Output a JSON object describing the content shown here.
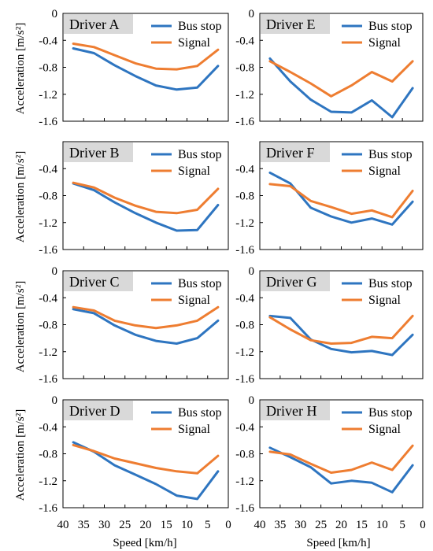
{
  "figure": {
    "ylabel": "Acceleration [m/s²]",
    "xlabel": "Speed [km/h]",
    "colors": {
      "bus_stop": "#2e75c0",
      "signal": "#ee7d31",
      "title_box": "#d9d9d9"
    }
  },
  "chart_data": [
    {
      "type": "line",
      "title": "Driver A",
      "xlim": [
        40,
        0
      ],
      "ylim": [
        -1.6,
        0
      ],
      "xticks": [
        40,
        35,
        30,
        25,
        20,
        15,
        10,
        5,
        0
      ],
      "yticks": [
        0,
        -0.4,
        -0.8,
        -1.2,
        -1.6
      ],
      "ytick_labels": [
        "0",
        "-0.4",
        "-0.8",
        "-1.2",
        "-1.6"
      ],
      "legend": "top-right",
      "x": [
        37.5,
        32.5,
        27.5,
        22.5,
        17.5,
        12.5,
        7.5,
        2.5
      ],
      "series": [
        {
          "name": "Bus stop",
          "key": "bus_stop",
          "values": [
            -0.52,
            -0.59,
            -0.77,
            -0.93,
            -1.07,
            -1.13,
            -1.1,
            -0.78
          ]
        },
        {
          "name": "Signal",
          "key": "signal",
          "values": [
            -0.45,
            -0.5,
            -0.62,
            -0.74,
            -0.82,
            -0.83,
            -0.78,
            -0.54
          ]
        }
      ]
    },
    {
      "type": "line",
      "title": "Driver E",
      "xlim": [
        40,
        0
      ],
      "ylim": [
        -1.6,
        0
      ],
      "xticks": [
        40,
        35,
        30,
        25,
        20,
        15,
        10,
        5,
        0
      ],
      "yticks": [
        0,
        -0.4,
        -0.8,
        -1.2,
        -1.6
      ],
      "ytick_labels": [
        "0",
        "-0.4",
        "-0.8",
        "-1.2",
        "-1.6"
      ],
      "legend": "top-right",
      "x": [
        37.5,
        32.5,
        27.5,
        22.5,
        17.5,
        12.5,
        7.5,
        2.5
      ],
      "series": [
        {
          "name": "Bus stop",
          "key": "bus_stop",
          "values": [
            -0.67,
            -1.01,
            -1.28,
            -1.46,
            -1.47,
            -1.29,
            -1.54,
            -1.11
          ]
        },
        {
          "name": "Signal",
          "key": "signal",
          "values": [
            -0.71,
            -0.87,
            -1.04,
            -1.23,
            -1.07,
            -0.87,
            -1.01,
            -0.71
          ]
        }
      ]
    },
    {
      "type": "line",
      "title": "Driver B",
      "xlim": [
        40,
        0
      ],
      "ylim": [
        -1.6,
        0
      ],
      "xticks": [
        40,
        35,
        30,
        25,
        20,
        15,
        10,
        5,
        0
      ],
      "yticks": [
        0,
        -0.4,
        -0.8,
        -1.2,
        -1.6
      ],
      "ytick_labels": [
        "",
        "-0.4",
        "-0.8",
        "-1.2",
        "-1.6"
      ],
      "legend": "top-right",
      "x": [
        37.5,
        32.5,
        27.5,
        22.5,
        17.5,
        12.5,
        7.5,
        2.5
      ],
      "series": [
        {
          "name": "Bus stop",
          "key": "bus_stop",
          "values": [
            -0.62,
            -0.72,
            -0.9,
            -1.06,
            -1.2,
            -1.32,
            -1.31,
            -0.94
          ]
        },
        {
          "name": "Signal",
          "key": "signal",
          "values": [
            -0.61,
            -0.68,
            -0.83,
            -0.95,
            -1.04,
            -1.06,
            -1.01,
            -0.7
          ]
        }
      ]
    },
    {
      "type": "line",
      "title": "Driver F",
      "xlim": [
        40,
        0
      ],
      "ylim": [
        -1.6,
        0
      ],
      "xticks": [
        40,
        35,
        30,
        25,
        20,
        15,
        10,
        5,
        0
      ],
      "yticks": [
        0,
        -0.4,
        -0.8,
        -1.2,
        -1.6
      ],
      "ytick_labels": [
        "",
        "-0.4",
        "-0.8",
        "-1.2",
        "-1.6"
      ],
      "legend": "top-right",
      "x": [
        37.5,
        32.5,
        27.5,
        22.5,
        17.5,
        12.5,
        7.5,
        2.5
      ],
      "series": [
        {
          "name": "Bus stop",
          "key": "bus_stop",
          "values": [
            -0.46,
            -0.62,
            -0.98,
            -1.11,
            -1.2,
            -1.14,
            -1.23,
            -0.89
          ]
        },
        {
          "name": "Signal",
          "key": "signal",
          "values": [
            -0.63,
            -0.66,
            -0.88,
            -0.97,
            -1.07,
            -1.02,
            -1.12,
            -0.73
          ]
        }
      ]
    },
    {
      "type": "line",
      "title": "Driver C",
      "xlim": [
        40,
        0
      ],
      "ylim": [
        -1.6,
        0
      ],
      "xticks": [
        40,
        35,
        30,
        25,
        20,
        15,
        10,
        5,
        0
      ],
      "yticks": [
        0,
        -0.4,
        -0.8,
        -1.2,
        -1.6
      ],
      "ytick_labels": [
        "0",
        "-0.4",
        "-0.8",
        "-1.2",
        "-1.6"
      ],
      "legend": "top-right",
      "x": [
        37.5,
        32.5,
        27.5,
        22.5,
        17.5,
        12.5,
        7.5,
        2.5
      ],
      "series": [
        {
          "name": "Bus stop",
          "key": "bus_stop",
          "values": [
            -0.57,
            -0.63,
            -0.81,
            -0.95,
            -1.04,
            -1.08,
            -1.0,
            -0.74
          ]
        },
        {
          "name": "Signal",
          "key": "signal",
          "values": [
            -0.54,
            -0.59,
            -0.74,
            -0.81,
            -0.85,
            -0.81,
            -0.74,
            -0.54
          ]
        }
      ]
    },
    {
      "type": "line",
      "title": "Driver G",
      "xlim": [
        40,
        0
      ],
      "ylim": [
        -1.6,
        0
      ],
      "xticks": [
        40,
        35,
        30,
        25,
        20,
        15,
        10,
        5,
        0
      ],
      "yticks": [
        0,
        -0.4,
        -0.8,
        -1.2,
        -1.6
      ],
      "ytick_labels": [
        "0",
        "-0.4",
        "-0.8",
        "-1.2",
        "-1.6"
      ],
      "legend": "top-right",
      "x": [
        37.5,
        32.5,
        27.5,
        22.5,
        17.5,
        12.5,
        7.5,
        2.5
      ],
      "series": [
        {
          "name": "Bus stop",
          "key": "bus_stop",
          "values": [
            -0.67,
            -0.7,
            -1.02,
            -1.16,
            -1.21,
            -1.19,
            -1.25,
            -0.95
          ]
        },
        {
          "name": "Signal",
          "key": "signal",
          "values": [
            -0.69,
            -0.87,
            -1.03,
            -1.08,
            -1.07,
            -0.98,
            -1.0,
            -0.67
          ]
        }
      ]
    },
    {
      "type": "line",
      "title": "Driver D",
      "xlim": [
        40,
        0
      ],
      "ylim": [
        -1.6,
        0
      ],
      "xticks": [
        40,
        35,
        30,
        25,
        20,
        15,
        10,
        5,
        0
      ],
      "yticks": [
        0,
        -0.4,
        -0.8,
        -1.2,
        -1.6
      ],
      "ytick_labels": [
        "0",
        "-0.4",
        "-0.8",
        "-1.2",
        "-1.6"
      ],
      "legend": "top-right",
      "x": [
        37.5,
        32.5,
        27.5,
        22.5,
        17.5,
        12.5,
        7.5,
        2.5
      ],
      "series": [
        {
          "name": "Bus stop",
          "key": "bus_stop",
          "values": [
            -0.63,
            -0.77,
            -0.97,
            -1.11,
            -1.25,
            -1.42,
            -1.47,
            -1.06
          ]
        },
        {
          "name": "Signal",
          "key": "signal",
          "values": [
            -0.67,
            -0.76,
            -0.87,
            -0.94,
            -1.01,
            -1.06,
            -1.09,
            -0.83
          ]
        }
      ]
    },
    {
      "type": "line",
      "title": "Driver H",
      "xlim": [
        40,
        0
      ],
      "ylim": [
        -1.6,
        0
      ],
      "xticks": [
        40,
        35,
        30,
        25,
        20,
        15,
        10,
        5,
        0
      ],
      "yticks": [
        0,
        -0.4,
        -0.8,
        -1.2,
        -1.6
      ],
      "ytick_labels": [
        "0",
        "-0.4",
        "-0.8",
        "-1.2",
        "-1.6"
      ],
      "legend": "top-right",
      "x": [
        37.5,
        32.5,
        27.5,
        22.5,
        17.5,
        12.5,
        7.5,
        2.5
      ],
      "series": [
        {
          "name": "Bus stop",
          "key": "bus_stop",
          "values": [
            -0.71,
            -0.85,
            -1.0,
            -1.24,
            -1.2,
            -1.23,
            -1.37,
            -0.97
          ]
        },
        {
          "name": "Signal",
          "key": "signal",
          "values": [
            -0.77,
            -0.81,
            -0.95,
            -1.08,
            -1.04,
            -0.93,
            -1.04,
            -0.68
          ]
        }
      ]
    }
  ],
  "x_tick_labels": {
    "left": [
      "40",
      "35",
      "30",
      "25",
      "20",
      "15",
      "10",
      "5",
      "0"
    ],
    "right": [
      "40",
      "35",
      "30",
      "25",
      "20",
      "15",
      "10",
      "5",
      "0"
    ]
  }
}
